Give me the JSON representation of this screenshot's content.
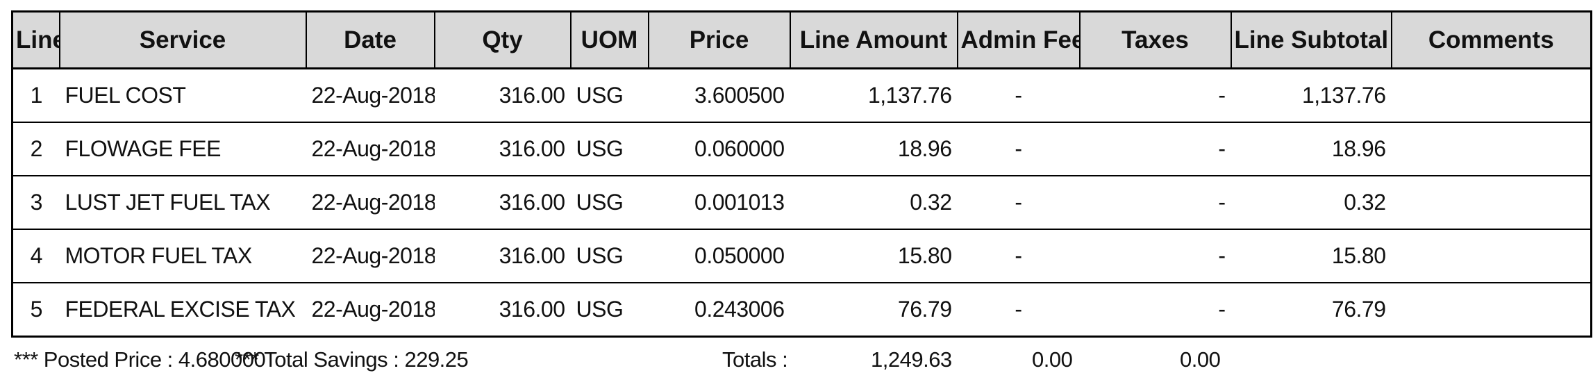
{
  "table": {
    "headers": [
      "Line",
      "Service",
      "Date",
      "Qty",
      "UOM",
      "Price",
      "Line Amount",
      "Admin Fee",
      "Taxes",
      "Line Subtotal",
      "Comments"
    ],
    "rows": [
      {
        "line": "1",
        "service": "FUEL COST",
        "date": "22-Aug-2018",
        "qty": "316.00",
        "uom": "USG",
        "price": "3.600500",
        "line_amount": "1,137.76",
        "admin_fee": "-",
        "taxes": "-",
        "line_subtotal": "1,137.76",
        "comments": ""
      },
      {
        "line": "2",
        "service": "FLOWAGE FEE",
        "date": "22-Aug-2018",
        "qty": "316.00",
        "uom": "USG",
        "price": "0.060000",
        "line_amount": "18.96",
        "admin_fee": "-",
        "taxes": "-",
        "line_subtotal": "18.96",
        "comments": ""
      },
      {
        "line": "3",
        "service": "LUST JET FUEL TAX",
        "date": "22-Aug-2018",
        "qty": "316.00",
        "uom": "USG",
        "price": "0.001013",
        "line_amount": "0.32",
        "admin_fee": "-",
        "taxes": "-",
        "line_subtotal": "0.32",
        "comments": ""
      },
      {
        "line": "4",
        "service": "MOTOR FUEL TAX",
        "date": "22-Aug-2018",
        "qty": "316.00",
        "uom": "USG",
        "price": "0.050000",
        "line_amount": "15.80",
        "admin_fee": "-",
        "taxes": "-",
        "line_subtotal": "15.80",
        "comments": ""
      },
      {
        "line": "5",
        "service": "FEDERAL EXCISE TAX",
        "date": "22-Aug-2018",
        "qty": "316.00",
        "uom": "USG",
        "price": "0.243006",
        "line_amount": "76.79",
        "admin_fee": "-",
        "taxes": "-",
        "line_subtotal": "76.79",
        "comments": ""
      }
    ]
  },
  "footer": {
    "posted_price": "*** Posted Price : 4.680000",
    "total_savings": "*** Total Savings : 229.25",
    "totals_label": "Totals :",
    "total_line_amount": "1,249.63",
    "total_admin_fee": "0.00",
    "total_taxes": "0.00"
  },
  "colors": {
    "header_bg": "#d9d9d9",
    "border": "#000000"
  }
}
